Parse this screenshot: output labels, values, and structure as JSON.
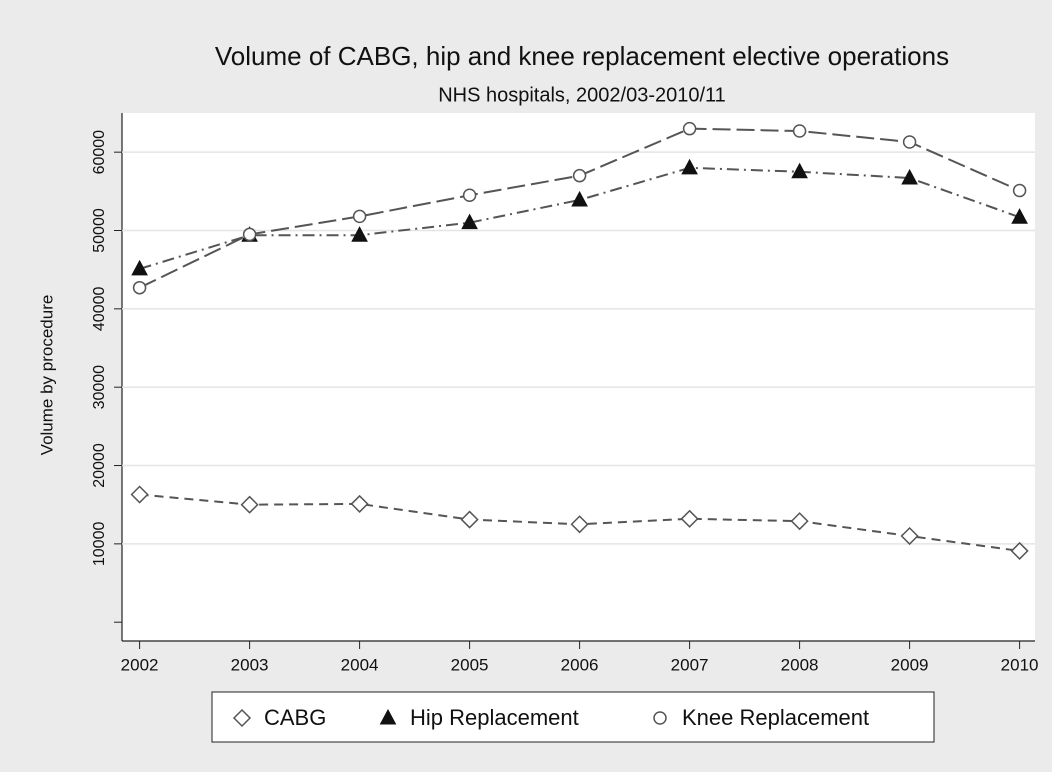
{
  "chart_data": {
    "type": "line",
    "title": "Volume of CABG, hip and knee replacement elective operations",
    "subtitle": "NHS hospitals, 2002/03-2010/11",
    "y_label": "Volume by procedure",
    "x": [
      2002,
      2003,
      2004,
      2005,
      2006,
      2007,
      2008,
      2009,
      2010
    ],
    "series": [
      {
        "name": "CABG",
        "color": "#555555",
        "marker": "diamond",
        "dash": "short",
        "values": [
          16300,
          15000,
          15100,
          13100,
          12500,
          13200,
          12900,
          11000,
          9100
        ]
      },
      {
        "name": "Hip Replacement",
        "color": "#555555",
        "marker": "triangle",
        "dash": "dashdot",
        "values": [
          45100,
          49400,
          49400,
          51000,
          53900,
          58000,
          57500,
          56700,
          51700
        ]
      },
      {
        "name": "Knee Replacement",
        "color": "#555555",
        "marker": "circle",
        "dash": "long",
        "values": [
          42700,
          49500,
          51800,
          54500,
          57000,
          63000,
          62700,
          61300,
          55100
        ]
      }
    ],
    "xlim": [
      2001.84,
      2010.14
    ],
    "xticks": [
      2002,
      2003,
      2004,
      2005,
      2006,
      2007,
      2008,
      2009,
      2010
    ],
    "ylim": [
      -2400,
      65000
    ],
    "yticks": [
      10000,
      20000,
      30000,
      40000,
      50000,
      60000
    ],
    "unlabeled_yticks": [
      0
    ],
    "grid": true,
    "legend": "bottom"
  }
}
